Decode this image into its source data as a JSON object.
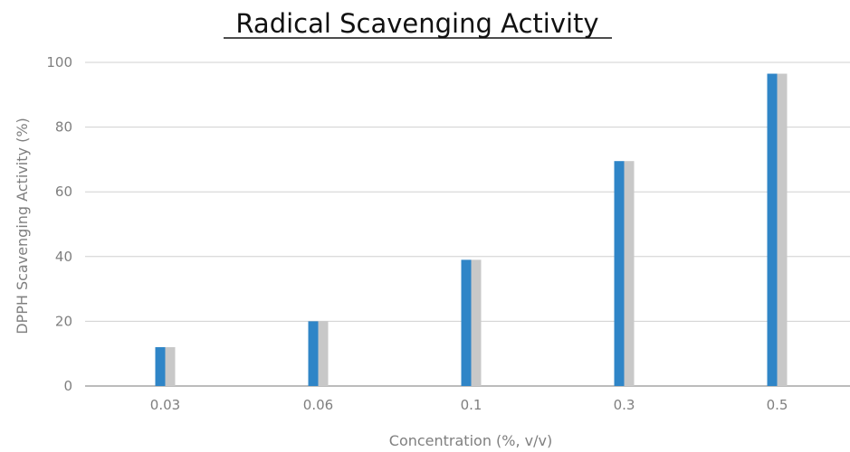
{
  "chart_data": {
    "type": "bar",
    "title": "Radical Scavenging Activity",
    "xlabel": "Concentration (%, v/v)",
    "ylabel": "DPPH Scavenging Activity (%)",
    "categories": [
      "0.03",
      "0.06",
      "0.1",
      "0.3",
      "0.5"
    ],
    "series": [
      {
        "values": [
          12,
          20,
          39,
          69.5,
          96.5
        ],
        "color": "#2f85c7"
      },
      {
        "values": [
          12,
          20,
          39,
          69.5,
          96.5
        ],
        "color": "#c8c8c8"
      }
    ],
    "ylim": [
      0,
      100
    ],
    "yticks": [
      0,
      20,
      40,
      60,
      80,
      100
    ],
    "grid": true,
    "legend": "none"
  }
}
